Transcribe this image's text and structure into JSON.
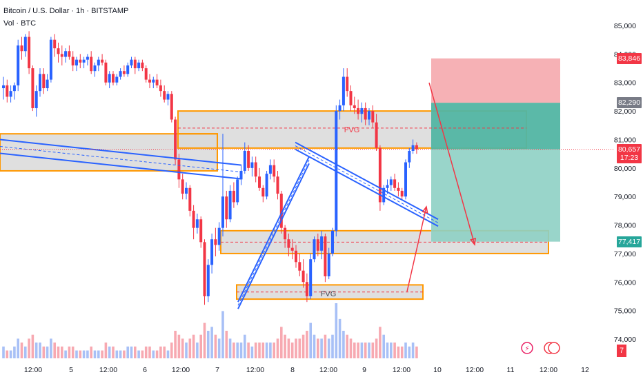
{
  "header": {
    "title": "Bitcoin / U.S. Dollar · 1h · BITSTAMP",
    "volume_label": "Vol · BTC"
  },
  "colors": {
    "up": "#2962ff",
    "down": "#f23645",
    "up_volume": "#a8c0f6",
    "down_volume": "#f7a9b1",
    "zone_fill": "#d9d9d9",
    "zone_border": "#ff9800",
    "stop_zone": "#f5a3a8",
    "target_zone_dark": "#52b5a3",
    "target_zone_light": "#8ed0c4",
    "trendline": "#2962ff",
    "arrow": "#f23645"
  },
  "price_axis": {
    "ticks": [
      "85,000",
      "84,000",
      "83,000",
      "82,000",
      "81,000",
      "80,000",
      "79,000",
      "78,000",
      "77,000",
      "76,000",
      "75,000",
      "74,000"
    ],
    "labels": [
      {
        "text": "83,846",
        "value": 83846,
        "bg": "#f23645",
        "fg": "#ffffff"
      },
      {
        "text": "82,290",
        "value": 82290,
        "bg": "#787b86",
        "fg": "#ffffff"
      },
      {
        "text": "80,657",
        "value": 80657,
        "bg": "#f23645",
        "fg": "#ffffff"
      },
      {
        "text": "17:23",
        "value": 80360,
        "bg": "#f23645",
        "fg": "#ffffff"
      },
      {
        "text": "77,417",
        "value": 77417,
        "bg": "#26a69a",
        "fg": "#ffffff"
      }
    ],
    "corner_badge": "7"
  },
  "time_axis": {
    "ticks": [
      "12:00",
      "5",
      "12:00",
      "6",
      "12:00",
      "7",
      "12:00",
      "8",
      "12:00",
      "9",
      "12:00",
      "10",
      "12:00",
      "11",
      "12:00",
      "12"
    ]
  },
  "annotations": {
    "fvg_upper": "FVG",
    "fvg_lower": "FVG"
  },
  "chart_data": {
    "type": "candlestick",
    "symbol": "Bitcoin / U.S. Dollar",
    "interval": "1h",
    "exchange": "BITSTAMP",
    "ylim": [
      73600,
      85400
    ],
    "last_price": 80657,
    "countdown": "17:23",
    "trade_setup": {
      "entry": 82290,
      "stop": 83846,
      "target": 77417
    },
    "candles_ohlc": [
      [
        82800,
        83200,
        82400,
        82900
      ],
      [
        82900,
        83100,
        82300,
        82500
      ],
      [
        82500,
        82900,
        82300,
        82700
      ],
      [
        82700,
        83000,
        82400,
        82900
      ],
      [
        82900,
        84500,
        82700,
        84300
      ],
      [
        84300,
        84600,
        83800,
        84100
      ],
      [
        84100,
        84700,
        83900,
        84600
      ],
      [
        84600,
        84800,
        83300,
        83500
      ],
      [
        83500,
        83600,
        82000,
        82100
      ],
      [
        82100,
        82900,
        81800,
        82700
      ],
      [
        82700,
        83500,
        82500,
        83300
      ],
      [
        83300,
        83500,
        82600,
        82800
      ],
      [
        82800,
        83300,
        82700,
        83100
      ],
      [
        83100,
        84600,
        83000,
        84500
      ],
      [
        84500,
        84700,
        83900,
        84200
      ],
      [
        84200,
        84400,
        83700,
        84000
      ],
      [
        84000,
        84300,
        83600,
        83900
      ],
      [
        83900,
        84200,
        83700,
        84100
      ],
      [
        84100,
        84300,
        83800,
        83900
      ],
      [
        83900,
        84100,
        83400,
        83600
      ],
      [
        83600,
        83900,
        83400,
        83800
      ],
      [
        83800,
        84000,
        83500,
        83700
      ],
      [
        83700,
        83900,
        83500,
        83800
      ],
      [
        83800,
        84000,
        83600,
        83900
      ],
      [
        83900,
        84100,
        83300,
        83400
      ],
      [
        83400,
        83700,
        83200,
        83600
      ],
      [
        83600,
        83900,
        83400,
        83800
      ],
      [
        83800,
        84000,
        83600,
        83700
      ],
      [
        83700,
        83800,
        82900,
        83000
      ],
      [
        83000,
        83400,
        82800,
        83300
      ],
      [
        83300,
        83400,
        82900,
        83000
      ],
      [
        83000,
        83300,
        82900,
        83200
      ],
      [
        83200,
        83500,
        83100,
        83400
      ],
      [
        83400,
        83600,
        83200,
        83300
      ],
      [
        83300,
        83700,
        83200,
        83600
      ],
      [
        83600,
        83900,
        83500,
        83800
      ],
      [
        83800,
        83900,
        83300,
        83500
      ],
      [
        83500,
        83800,
        83400,
        83700
      ],
      [
        83700,
        83800,
        83400,
        83500
      ],
      [
        83500,
        83600,
        83000,
        83100
      ],
      [
        83100,
        83300,
        82800,
        83000
      ],
      [
        83000,
        83200,
        82800,
        83100
      ],
      [
        83100,
        83300,
        82800,
        82900
      ],
      [
        82900,
        83100,
        82500,
        82700
      ],
      [
        82700,
        82900,
        82300,
        82400
      ],
      [
        82400,
        82700,
        82200,
        82600
      ],
      [
        82600,
        82700,
        81600,
        81700
      ],
      [
        81700,
        81800,
        80100,
        80300
      ],
      [
        80300,
        80500,
        79300,
        79600
      ],
      [
        79600,
        79800,
        78900,
        79100
      ],
      [
        79100,
        79500,
        78900,
        79300
      ],
      [
        79300,
        79400,
        78300,
        78500
      ],
      [
        78500,
        78700,
        77500,
        77900
      ],
      [
        77900,
        78400,
        77700,
        78200
      ],
      [
        78200,
        78300,
        77200,
        77400
      ],
      [
        77400,
        77500,
        75200,
        75500
      ],
      [
        75500,
        76800,
        75300,
        76600
      ],
      [
        76600,
        77700,
        76300,
        77500
      ],
      [
        77500,
        77900,
        76900,
        77300
      ],
      [
        77300,
        78100,
        77100,
        77900
      ],
      [
        77900,
        81200,
        77600,
        79000
      ],
      [
        79000,
        79200,
        77900,
        78200
      ],
      [
        78200,
        79400,
        78100,
        79200
      ],
      [
        79200,
        79500,
        78600,
        78800
      ],
      [
        78800,
        79700,
        78700,
        79600
      ],
      [
        79600,
        80100,
        79400,
        79900
      ],
      [
        79900,
        80900,
        79800,
        80600
      ],
      [
        80600,
        80800,
        79900,
        80000
      ],
      [
        80000,
        80400,
        79700,
        80200
      ],
      [
        80200,
        80400,
        79500,
        79700
      ],
      [
        79700,
        80000,
        79200,
        79300
      ],
      [
        79300,
        79400,
        78800,
        79000
      ],
      [
        79000,
        79900,
        78900,
        79800
      ],
      [
        79800,
        80300,
        79600,
        80100
      ],
      [
        80100,
        80300,
        79500,
        79700
      ],
      [
        79700,
        79900,
        78900,
        79100
      ],
      [
        79100,
        79200,
        77700,
        77900
      ],
      [
        77900,
        78000,
        77200,
        77500
      ],
      [
        77500,
        77700,
        76900,
        77200
      ],
      [
        77200,
        77500,
        76800,
        77100
      ],
      [
        77100,
        77300,
        76500,
        76700
      ],
      [
        76700,
        77000,
        76200,
        76400
      ],
      [
        76400,
        76800,
        75800,
        76000
      ],
      [
        76000,
        76300,
        75300,
        75500
      ],
      [
        75500,
        77000,
        75400,
        76800
      ],
      [
        76800,
        77600,
        76700,
        77500
      ],
      [
        77500,
        77700,
        76900,
        77100
      ],
      [
        77100,
        77800,
        76800,
        77600
      ],
      [
        77600,
        77700,
        76000,
        76200
      ],
      [
        76200,
        77200,
        76100,
        77000
      ],
      [
        77000,
        77900,
        76900,
        77800
      ],
      [
        77800,
        82200,
        77600,
        82000
      ],
      [
        82000,
        82400,
        81700,
        82200
      ],
      [
        82200,
        83500,
        82000,
        83200
      ],
      [
        83200,
        83500,
        82500,
        82700
      ],
      [
        82700,
        82900,
        82000,
        82200
      ],
      [
        82200,
        82500,
        81900,
        82100
      ],
      [
        82100,
        82400,
        81700,
        81900
      ],
      [
        81900,
        82300,
        81600,
        82100
      ],
      [
        82100,
        82300,
        81500,
        81700
      ],
      [
        81700,
        82100,
        81500,
        82000
      ],
      [
        82000,
        82200,
        81400,
        81600
      ],
      [
        81600,
        81900,
        80600,
        80700
      ],
      [
        80700,
        80800,
        78500,
        78800
      ],
      [
        78800,
        79400,
        78700,
        79300
      ],
      [
        79300,
        79600,
        79100,
        79400
      ],
      [
        79400,
        79700,
        79200,
        79600
      ],
      [
        79600,
        79800,
        79200,
        79300
      ],
      [
        79300,
        79500,
        79000,
        79200
      ],
      [
        79200,
        79300,
        78900,
        79000
      ],
      [
        79000,
        80300,
        78900,
        80200
      ],
      [
        80200,
        80700,
        80000,
        80600
      ],
      [
        80600,
        81000,
        80500,
        80800
      ],
      [
        80800,
        80900,
        80500,
        80657
      ]
    ],
    "volume": [
      3,
      2,
      2,
      3,
      5,
      4,
      3,
      5,
      6,
      4,
      4,
      3,
      3,
      5,
      4,
      3,
      3,
      2,
      3,
      3,
      2,
      2,
      2,
      2,
      3,
      2,
      2,
      2,
      4,
      3,
      3,
      2,
      2,
      2,
      3,
      3,
      3,
      2,
      2,
      3,
      3,
      2,
      2,
      3,
      3,
      2,
      4,
      7,
      6,
      5,
      4,
      5,
      6,
      4,
      6,
      9,
      7,
      8,
      6,
      5,
      12,
      7,
      5,
      4,
      4,
      4,
      6,
      4,
      3,
      4,
      4,
      4,
      4,
      4,
      4,
      5,
      8,
      6,
      5,
      4,
      5,
      5,
      6,
      7,
      9,
      6,
      5,
      5,
      6,
      5,
      6,
      14,
      10,
      7,
      6,
      5,
      4,
      4,
      4,
      4,
      4,
      4,
      5,
      8,
      6,
      4,
      4,
      4,
      3,
      3,
      4,
      3,
      4,
      3
    ],
    "zones": [
      {
        "label": "FVG",
        "from": 80700,
        "to": 82000
      },
      {
        "label": "FVG",
        "from": 75400,
        "to": 75900
      },
      {
        "label": "",
        "from": 77000,
        "to": 77800
      },
      {
        "label": "",
        "from": 79900,
        "to": 81200
      }
    ]
  }
}
